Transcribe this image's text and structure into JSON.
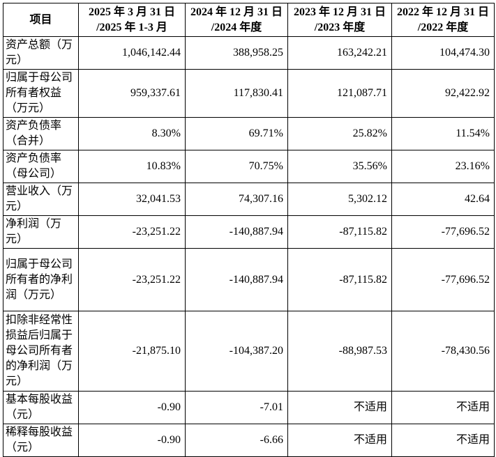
{
  "table": {
    "header": [
      [
        "项目"
      ],
      [
        "2025 年 3 月 31 日",
        "/2025 年 1-3 月"
      ],
      [
        "2024 年 12 月 31 日",
        "/2024 年度"
      ],
      [
        "2023 年 12 月 31 日",
        "/2023 年度"
      ],
      [
        "2022 年 12 月 31 日",
        "/2022 年度"
      ]
    ],
    "rows": [
      [
        "资产总额（万元）",
        "1,046,142.44",
        "388,958.25",
        "163,242.21",
        "104,474.30"
      ],
      [
        "归属于母公司所有者权益（万元）",
        "959,337.61",
        "117,830.41",
        "121,087.71",
        "92,422.92"
      ],
      [
        "资产负债率（合并）",
        "8.30%",
        "69.71%",
        "25.82%",
        "11.54%"
      ],
      [
        "资产负债率（母公司）",
        "10.83%",
        "70.75%",
        "35.56%",
        "23.16%"
      ],
      [
        "营业收入（万元）",
        "32,041.53",
        "74,307.16",
        "5,302.12",
        "42.64"
      ],
      [
        "净利润（万元）",
        "-23,251.22",
        "-140,887.94",
        "-87,115.82",
        "-77,696.52"
      ],
      [
        "归属于母公司所有者的净利润（万元）",
        "-23,251.22",
        "-140,887.94",
        "-87,115.82",
        "-77,696.52"
      ],
      [
        "扣除非经常性损益后归属于母公司所有者的净利润（万元）",
        "-21,875.10",
        "-104,387.20",
        "-88,987.53",
        "-78,430.56"
      ],
      [
        "基本每股收益（元）",
        "-0.90",
        "-7.01",
        "不适用",
        "不适用"
      ],
      [
        "稀释每股收益（元）",
        "-0.90",
        "-6.66",
        "不适用",
        "不适用"
      ]
    ]
  }
}
